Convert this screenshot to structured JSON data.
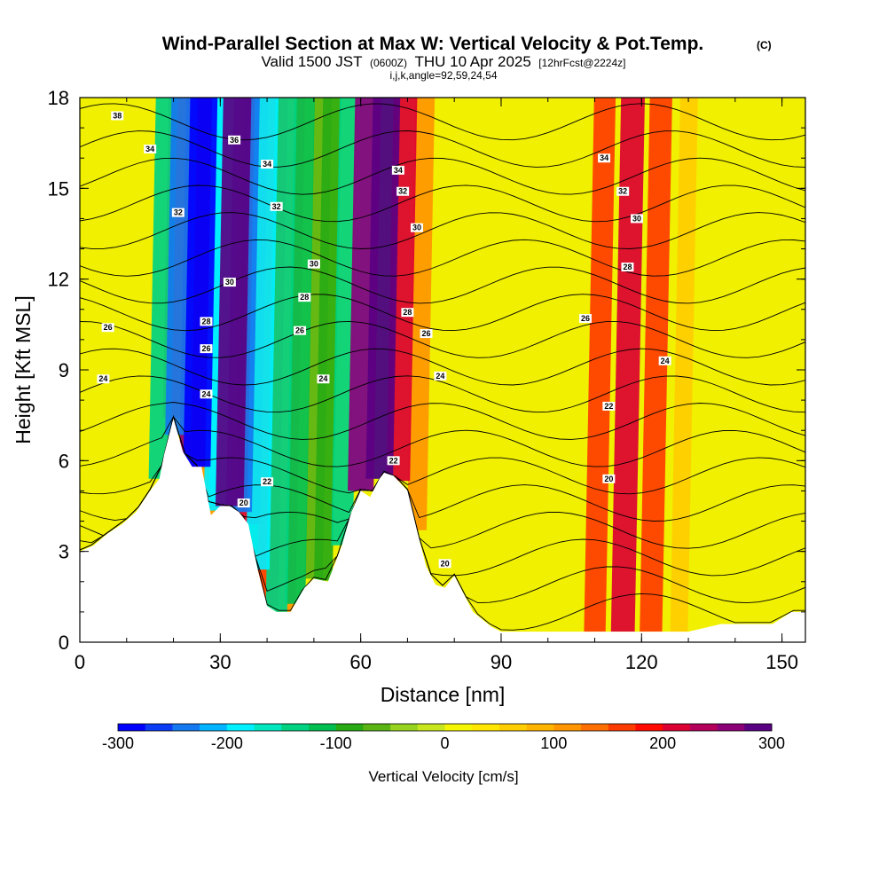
{
  "chart_data": {
    "type": "heatmap",
    "title": "Wind-Parallel Section at Max W: Vertical Velocity & Pot.Temp.",
    "title_mark": "(C)",
    "subtitle_main": "Valid 1500 JST",
    "subtitle_utc": "(0600Z)",
    "subtitle_date": "THU 10 Apr 2025",
    "subtitle_fcst": "[12hrFcst@2224z]",
    "subtitle2": "i,j,k,angle=92,59,24,54",
    "xlabel": "Distance [nm]",
    "ylabel": "Height [Kft MSL]",
    "xlim": [
      0,
      155
    ],
    "ylim": [
      0,
      18
    ],
    "xticks": [
      0,
      30,
      60,
      90,
      120,
      150
    ],
    "yticks": [
      0,
      3,
      6,
      9,
      12,
      15,
      18
    ],
    "colorbar": {
      "label": "Vertical Velocity [cm/s]",
      "range": [
        -300,
        300
      ],
      "step": 25,
      "tick_values": [
        -300,
        -200,
        -100,
        0,
        100,
        200,
        300
      ],
      "colors": [
        "#0000ff",
        "#0a3cf5",
        "#1478f0",
        "#00b4ff",
        "#00f0ff",
        "#00e6be",
        "#00d282",
        "#00be50",
        "#28aa14",
        "#5ab414",
        "#96d21e",
        "#c8e61e",
        "#f5f500",
        "#ffe600",
        "#ffcd00",
        "#ffb400",
        "#ff9600",
        "#ff6e00",
        "#ff3c00",
        "#ff0a00",
        "#dc0032",
        "#b4005a",
        "#8c0078",
        "#5a0082"
      ]
    },
    "terrain": [
      [
        0,
        3.0
      ],
      [
        3,
        3.2
      ],
      [
        6,
        3.6
      ],
      [
        9,
        3.9
      ],
      [
        12,
        4.3
      ],
      [
        15,
        5.0
      ],
      [
        17,
        5.4
      ],
      [
        18,
        6.2
      ],
      [
        20,
        7.4
      ],
      [
        22,
        6.3
      ],
      [
        24,
        5.8
      ],
      [
        26,
        5.8
      ],
      [
        28,
        4.2
      ],
      [
        30,
        4.5
      ],
      [
        32,
        4.5
      ],
      [
        34,
        4.3
      ],
      [
        36,
        3.9
      ],
      [
        38,
        2.4
      ],
      [
        40,
        1.2
      ],
      [
        42,
        1.0
      ],
      [
        45,
        1.0
      ],
      [
        48,
        1.8
      ],
      [
        50,
        2.1
      ],
      [
        53,
        2.0
      ],
      [
        56,
        3.2
      ],
      [
        58,
        4.3
      ],
      [
        60,
        5.0
      ],
      [
        62,
        4.8
      ],
      [
        64,
        5.4
      ],
      [
        65,
        5.6
      ],
      [
        67,
        5.5
      ],
      [
        70,
        5.0
      ],
      [
        72,
        3.7
      ],
      [
        74,
        2.5
      ],
      [
        76,
        1.9
      ],
      [
        78,
        1.8
      ],
      [
        80,
        2.2
      ],
      [
        82,
        1.6
      ],
      [
        84,
        1.0
      ],
      [
        88,
        0.5
      ],
      [
        90,
        0.35
      ],
      [
        95,
        0.35
      ],
      [
        100,
        0.35
      ],
      [
        105,
        0.35
      ],
      [
        110,
        0.35
      ],
      [
        115,
        0.35
      ],
      [
        120,
        0.35
      ],
      [
        130,
        0.35
      ],
      [
        137,
        0.6
      ],
      [
        148,
        0.6
      ],
      [
        152,
        1.0
      ],
      [
        155,
        1.0
      ]
    ],
    "updrafts": [
      {
        "x": [
          20,
          24,
          28
        ],
        "w": [
          150,
          250,
          120
        ]
      },
      {
        "x": [
          32,
          36,
          40,
          44
        ],
        "w": [
          300,
          200,
          150,
          100
        ]
      },
      {
        "x": [
          60,
          64,
          68,
          72
        ],
        "w": [
          250,
          280,
          200,
          100
        ]
      },
      {
        "x": [
          110,
          116,
          122,
          128
        ],
        "w": [
          150,
          200,
          170,
          60
        ]
      }
    ],
    "downdrafts": [
      {
        "x": [
          17,
          21,
          25,
          29
        ],
        "w": [
          -150,
          -250,
          -280,
          -200
        ]
      },
      {
        "x": [
          26,
          30,
          34,
          38
        ],
        "w": [
          -120,
          -180,
          -250,
          -200
        ]
      },
      {
        "x": [
          38,
          42,
          46,
          50
        ],
        "w": [
          -100,
          -150,
          -120,
          -60
        ]
      },
      {
        "x": [
          52,
          56,
          60,
          64
        ],
        "w": [
          -80,
          -150,
          -170,
          -120
        ]
      }
    ],
    "theta_contour_labels": [
      "38",
      "36",
      "34",
      "32",
      "30",
      "28",
      "26",
      "24",
      "22",
      "20"
    ],
    "theta_labels": [
      {
        "text": "38",
        "x": 8,
        "y": 17.4
      },
      {
        "text": "36",
        "x": 33,
        "y": 16.6
      },
      {
        "text": "34",
        "x": 15,
        "y": 16.3
      },
      {
        "text": "34",
        "x": 40,
        "y": 15.8
      },
      {
        "text": "34",
        "x": 68,
        "y": 15.6
      },
      {
        "text": "34",
        "x": 112,
        "y": 16.0
      },
      {
        "text": "32",
        "x": 21,
        "y": 14.2
      },
      {
        "text": "32",
        "x": 42,
        "y": 14.4
      },
      {
        "text": "32",
        "x": 69,
        "y": 14.9
      },
      {
        "text": "32",
        "x": 116,
        "y": 14.9
      },
      {
        "text": "30",
        "x": 32,
        "y": 11.9
      },
      {
        "text": "30",
        "x": 50,
        "y": 12.5
      },
      {
        "text": "30",
        "x": 72,
        "y": 13.7
      },
      {
        "text": "30",
        "x": 119,
        "y": 14.0
      },
      {
        "text": "28",
        "x": 27,
        "y": 10.6
      },
      {
        "text": "28",
        "x": 48,
        "y": 11.4
      },
      {
        "text": "28",
        "x": 70,
        "y": 10.9
      },
      {
        "text": "28",
        "x": 117,
        "y": 12.4
      },
      {
        "text": "26",
        "x": 6,
        "y": 10.4
      },
      {
        "text": "26",
        "x": 27,
        "y": 9.7
      },
      {
        "text": "26",
        "x": 47,
        "y": 10.3
      },
      {
        "text": "26",
        "x": 74,
        "y": 10.2
      },
      {
        "text": "26",
        "x": 108,
        "y": 10.7
      },
      {
        "text": "24",
        "x": 5,
        "y": 8.7
      },
      {
        "text": "24",
        "x": 27,
        "y": 8.2
      },
      {
        "text": "24",
        "x": 52,
        "y": 8.7
      },
      {
        "text": "24",
        "x": 77,
        "y": 8.8
      },
      {
        "text": "24",
        "x": 125,
        "y": 9.3
      },
      {
        "text": "22",
        "x": 40,
        "y": 5.3
      },
      {
        "text": "22",
        "x": 67,
        "y": 6.0
      },
      {
        "text": "22",
        "x": 113,
        "y": 7.8
      },
      {
        "text": "20",
        "x": 35,
        "y": 4.6
      },
      {
        "text": "20",
        "x": 78,
        "y": 2.6
      },
      {
        "text": "20",
        "x": 113,
        "y": 5.4
      }
    ]
  }
}
